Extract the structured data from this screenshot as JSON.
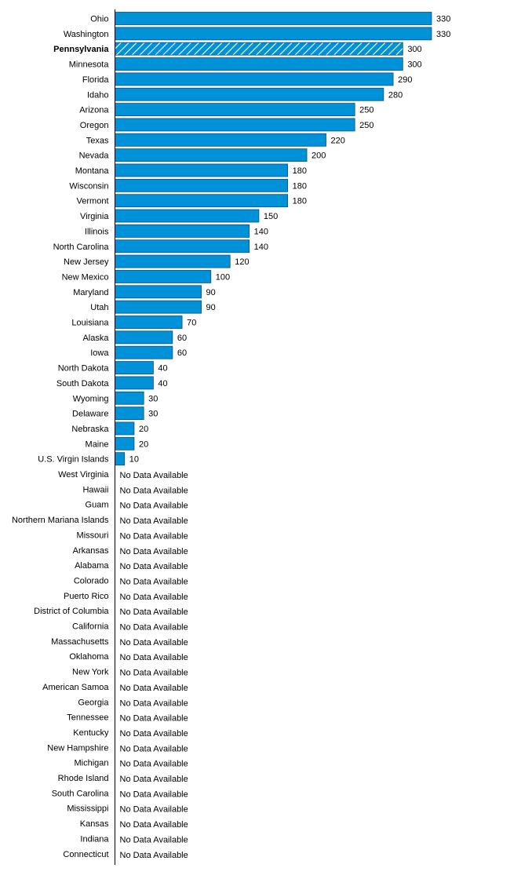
{
  "chart_data": {
    "type": "bar",
    "orientation": "horizontal",
    "bar_color": "#0092d8",
    "bar_stroke": "#0a4f7a",
    "highlight_category": "Pennsylvania",
    "highlight_style": "hatched",
    "no_data_text": "No Data Available",
    "xlim": [
      0,
      330
    ],
    "grid": false,
    "categories": [
      "Ohio",
      "Washington",
      "Pennsylvania",
      "Minnesota",
      "Florida",
      "Idaho",
      "Arizona",
      "Oregon",
      "Texas",
      "Nevada",
      "Montana",
      "Wisconsin",
      "Vermont",
      "Virginia",
      "Illinois",
      "North Carolina",
      "New Jersey",
      "New Mexico",
      "Maryland",
      "Utah",
      "Louisiana",
      "Alaska",
      "Iowa",
      "North Dakota",
      "South Dakota",
      "Wyoming",
      "Delaware",
      "Nebraska",
      "Maine",
      "U.S. Virgin Islands",
      "West Virginia",
      "Hawaii",
      "Guam",
      "Northern Mariana Islands",
      "Missouri",
      "Arkansas",
      "Alabama",
      "Colorado",
      "Puerto Rico",
      "District of Columbia",
      "California",
      "Massachusetts",
      "Oklahoma",
      "New York",
      "American Samoa",
      "Georgia",
      "Tennessee",
      "Kentucky",
      "New Hampshire",
      "Michigan",
      "Rhode Island",
      "South Carolina",
      "Mississippi",
      "Kansas",
      "Indiana",
      "Connecticut"
    ],
    "values": [
      330,
      330,
      300,
      300,
      290,
      280,
      250,
      250,
      220,
      200,
      180,
      180,
      180,
      150,
      140,
      140,
      120,
      100,
      90,
      90,
      70,
      60,
      60,
      40,
      40,
      30,
      30,
      20,
      20,
      10,
      null,
      null,
      null,
      null,
      null,
      null,
      null,
      null,
      null,
      null,
      null,
      null,
      null,
      null,
      null,
      null,
      null,
      null,
      null,
      null,
      null,
      null,
      null,
      null,
      null,
      null
    ]
  }
}
